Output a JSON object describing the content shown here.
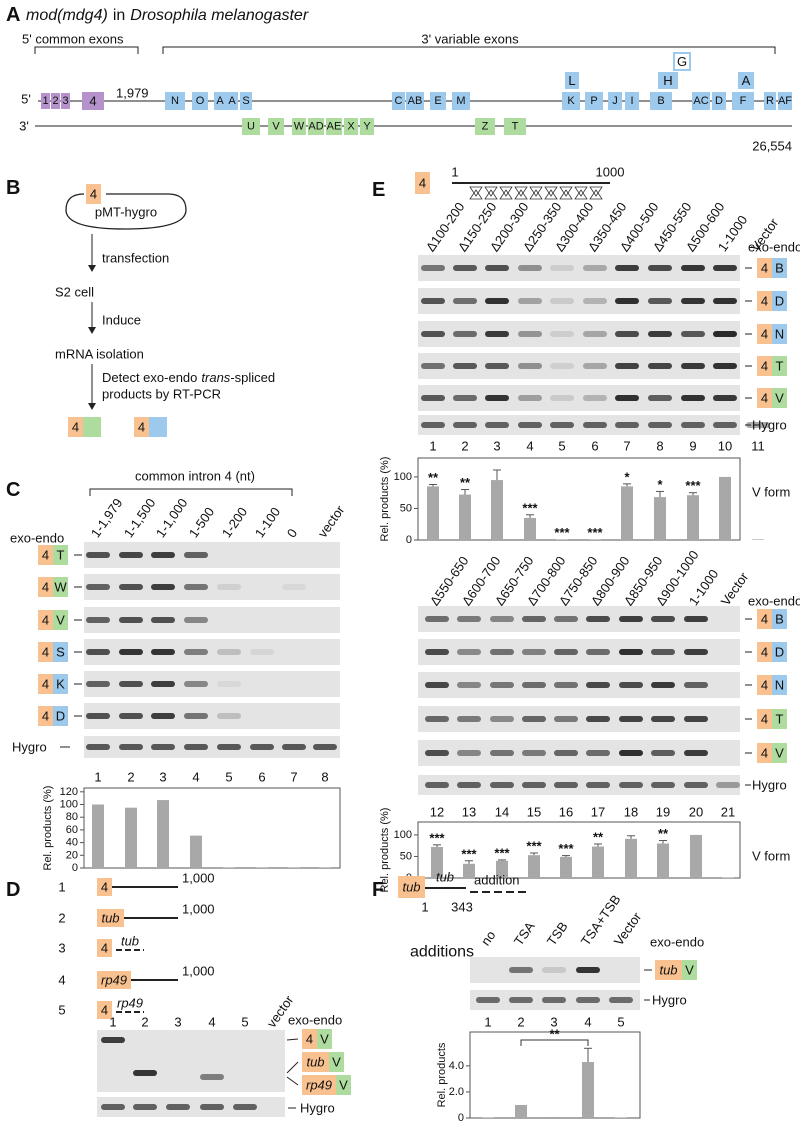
{
  "panel_a": {
    "label": "A",
    "title": [
      "mod(mdg4)",
      "in",
      "Drosophila melanogaster"
    ],
    "common_label": "5' common exons",
    "variable_label": "3' variable exons",
    "five_prime": "5'",
    "three_prime": "3'",
    "common_end": "1,979",
    "gene_end": "26,554",
    "common_exons": [
      "1",
      "2",
      "3",
      "4"
    ],
    "top_exons": [
      "N",
      "O",
      "A",
      "A",
      "S",
      "C",
      "AB",
      "E",
      "M",
      "K",
      "P",
      "J",
      "I",
      "B",
      "AC",
      "D",
      "F",
      "R",
      "AF"
    ],
    "stacked_exons": [
      "L",
      "H",
      "G",
      "A"
    ],
    "bottom_exons": [
      "U",
      "V",
      "W",
      "AD",
      "AE",
      "X",
      "Y",
      "Z",
      "T"
    ]
  },
  "panel_b": {
    "label": "B",
    "plasmid_exon": "4",
    "plasmid": "pMT-hygro",
    "stages": [
      "S2 cell",
      "mRNA isolation"
    ],
    "arrow_labels": [
      "transfection",
      "Induce"
    ],
    "detect": [
      "Detect exo-endo",
      "trans",
      "-spliced",
      "products by RT-PCR"
    ],
    "products": [
      {
        "exo": "4",
        "color": "#aedc9f"
      },
      {
        "exo": "4",
        "color": "#9dc9ec"
      }
    ]
  },
  "panel_c": {
    "label": "C",
    "intron_label": "common intron 4 (nt)",
    "lanes": [
      "1-1,979",
      "1-1,500",
      "1-1,000",
      "1-500",
      "1-200",
      "1-100",
      "0",
      "vector"
    ],
    "exo_endo": "exo-endo",
    "rows": [
      {
        "exo": "4",
        "endo": "T",
        "color": "#aedc9f"
      },
      {
        "exo": "4",
        "endo": "W",
        "color": "#aedc9f"
      },
      {
        "exo": "4",
        "endo": "V",
        "color": "#aedc9f"
      },
      {
        "exo": "4",
        "endo": "S",
        "color": "#9dc9ec"
      },
      {
        "exo": "4",
        "endo": "K",
        "color": "#9dc9ec"
      },
      {
        "exo": "4",
        "endo": "D",
        "color": "#9dc9ec"
      }
    ],
    "control": "Hygro",
    "lane_numbers": [
      1,
      2,
      3,
      4,
      5,
      6,
      7,
      8
    ]
  },
  "panel_d": {
    "label": "D",
    "constructs": [
      {
        "number": 1,
        "exo": "4",
        "end": "1,000"
      },
      {
        "number": 2,
        "exo": "tub",
        "end": "1,000"
      },
      {
        "number": 3,
        "exo": "4",
        "insert": "tub"
      },
      {
        "number": 4,
        "exo": "rp49",
        "end": "1,000"
      },
      {
        "number": 5,
        "exo": "4",
        "insert": "rp49"
      }
    ],
    "lanes": [
      1,
      2,
      3,
      4,
      5,
      "vector"
    ],
    "exo_endo": "exo-endo",
    "products": [
      {
        "exo": "4",
        "endo": "V",
        "color": "#aedc9f"
      },
      {
        "exo": "tub",
        "endo": "V",
        "color": "#aedc9f"
      },
      {
        "exo": "rp49",
        "endo": "V",
        "color": "#aedc9f"
      }
    ],
    "control": "Hygro"
  },
  "panel_e": {
    "label": "E",
    "construct": {
      "exo": "4",
      "start": 1,
      "end": 1000
    },
    "top": {
      "lanes": [
        "Δ100-200",
        "Δ150-250",
        "Δ200-300",
        "Δ250-350",
        "Δ300-400",
        "Δ350-450",
        "Δ400-500",
        "Δ450-550",
        "Δ500-600",
        "1-1000",
        "Vector"
      ],
      "exo_endo": "exo-endo",
      "rows": [
        {
          "exo": "4",
          "endo": "B",
          "color": "#9dc9ec"
        },
        {
          "exo": "4",
          "endo": "D",
          "color": "#9dc9ec"
        },
        {
          "exo": "4",
          "endo": "N",
          "color": "#9dc9ec"
        },
        {
          "exo": "4",
          "endo": "T",
          "color": "#aedc9f"
        },
        {
          "exo": "4",
          "endo": "V",
          "color": "#aedc9f"
        }
      ],
      "control": "Hygro",
      "lane_numbers": [
        1,
        2,
        3,
        4,
        5,
        6,
        7,
        8,
        9,
        10,
        11
      ]
    },
    "bottom": {
      "lanes": [
        "Δ550-650",
        "Δ600-700",
        "Δ650-750",
        "Δ700-800",
        "Δ750-850",
        "Δ800-900",
        "Δ850-950",
        "Δ900-1000",
        "1-1000",
        "Vector"
      ],
      "exo_endo": "exo-endo",
      "rows": [
        {
          "exo": "4",
          "endo": "B",
          "color": "#9dc9ec"
        },
        {
          "exo": "4",
          "endo": "D",
          "color": "#9dc9ec"
        },
        {
          "exo": "4",
          "endo": "N",
          "color": "#9dc9ec"
        },
        {
          "exo": "4",
          "endo": "T",
          "color": "#aedc9f"
        },
        {
          "exo": "4",
          "endo": "V",
          "color": "#aedc9f"
        }
      ],
      "control": "Hygro",
      "lane_numbers": [
        12,
        13,
        14,
        15,
        16,
        17,
        18,
        19,
        20,
        21
      ]
    }
  },
  "panel_f": {
    "label": "F",
    "construct": {
      "exo": "tub",
      "insert": "tub",
      "start": 1,
      "end": 343,
      "addition": "addition"
    },
    "additions_label": "additions",
    "lanes": [
      "no",
      "TSA",
      "TSB",
      "TSA+TSB",
      "Vector"
    ],
    "exo_endo": "exo-endo",
    "row": {
      "exo": "tub",
      "endo": "V",
      "color": "#aedc9f"
    },
    "control": "Hygro",
    "lane_numbers": [
      1,
      2,
      3,
      4,
      5
    ]
  },
  "chart_data": [
    {
      "type": "bar",
      "ylabel": "Rel. products (%)",
      "ylim": [
        0,
        126
      ],
      "yticks": [
        0,
        20,
        40,
        60,
        80,
        100,
        120
      ],
      "values": [
        100,
        95,
        107,
        51,
        1,
        0.5,
        0.5,
        0.5
      ],
      "color": "#a8a8a8"
    },
    {
      "type": "bar",
      "ylabel": "Rel. products (%)",
      "label": "V form",
      "ylim": [
        0,
        130
      ],
      "yticks": [
        0,
        50,
        100
      ],
      "values": [
        85,
        72,
        95,
        35,
        1,
        1,
        85,
        68,
        71,
        100,
        1
      ],
      "errors": [
        3,
        8,
        16,
        5,
        0,
        0,
        4,
        9,
        4,
        0,
        0
      ],
      "annotations": [
        "**",
        "**",
        null,
        "***",
        "***",
        "***",
        "*",
        "*",
        "***",
        null,
        null
      ],
      "color": "#a8a8a8"
    },
    {
      "type": "bar",
      "ylabel": "Rel. products (%)",
      "label": "V form",
      "ylim": [
        0,
        130
      ],
      "yticks": [
        0,
        50,
        100
      ],
      "values": [
        72,
        33,
        40,
        53,
        49,
        73,
        91,
        80,
        100,
        1
      ],
      "errors": [
        5,
        7,
        2,
        5,
        3,
        6,
        7,
        7,
        0,
        0
      ],
      "annotations": [
        "***",
        "***",
        "***",
        "***",
        "***",
        "**",
        null,
        "**",
        null,
        null
      ],
      "color": "#a8a8a8"
    },
    {
      "type": "bar",
      "ylabel": "Rel. products",
      "ylim": [
        0,
        6.6
      ],
      "yticks": [
        0,
        {
          "value": 2,
          "label": "2.0"
        },
        {
          "value": 4,
          "label": "4.0"
        }
      ],
      "values": [
        0.03,
        1,
        0.08,
        4.3,
        0.03
      ],
      "errors": [
        0,
        0,
        0,
        1.05,
        0
      ],
      "significance": "**",
      "color": "#a8a8a8"
    }
  ]
}
